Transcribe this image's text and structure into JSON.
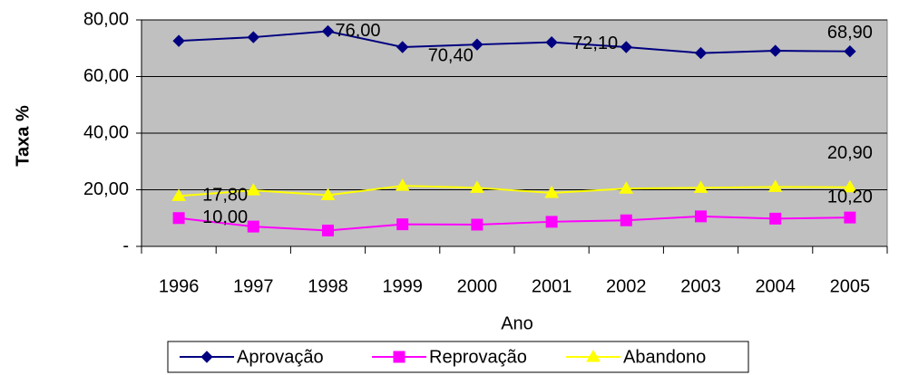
{
  "chart_data": {
    "type": "line",
    "x_label": "Ano",
    "y_label": "Taxa  %",
    "categories": [
      "1996",
      "1997",
      "1998",
      "1999",
      "2000",
      "2001",
      "2002",
      "2003",
      "2004",
      "2005"
    ],
    "series": [
      {
        "name": "Aprovação",
        "color": "#000080",
        "marker": "diamond",
        "values": [
          72.6,
          73.9,
          76.0,
          70.4,
          71.3,
          72.1,
          70.4,
          68.3,
          69.1,
          68.9
        ],
        "value_labels": [
          null,
          null,
          "76,00",
          "70,40",
          null,
          "72,10",
          null,
          null,
          null,
          "68,90"
        ]
      },
      {
        "name": "Reprovação",
        "color": "#ff00ff",
        "marker": "square",
        "values": [
          10.0,
          7.0,
          5.6,
          7.8,
          7.7,
          8.7,
          9.2,
          10.6,
          9.8,
          10.2
        ],
        "value_labels": [
          "10,00",
          null,
          null,
          null,
          null,
          null,
          null,
          null,
          null,
          "10,20"
        ]
      },
      {
        "name": "Abandono",
        "color": "#ffff00",
        "marker": "triangle",
        "values": [
          17.8,
          19.8,
          18.1,
          21.4,
          20.7,
          18.9,
          20.4,
          20.7,
          21.0,
          20.9
        ],
        "value_labels": [
          "17,80",
          null,
          null,
          null,
          null,
          null,
          null,
          null,
          null,
          "20,90"
        ]
      }
    ],
    "ylim": [
      0,
      80
    ],
    "yticks": [
      {
        "value": 0,
        "label": "-"
      },
      {
        "value": 20,
        "label": "20,00"
      },
      {
        "value": 40,
        "label": "40,00"
      },
      {
        "value": 60,
        "label": "60,00"
      },
      {
        "value": 80,
        "label": "80,00"
      }
    ],
    "grid": true,
    "plot_background": "#c0c0c0",
    "legend": "bottom"
  }
}
